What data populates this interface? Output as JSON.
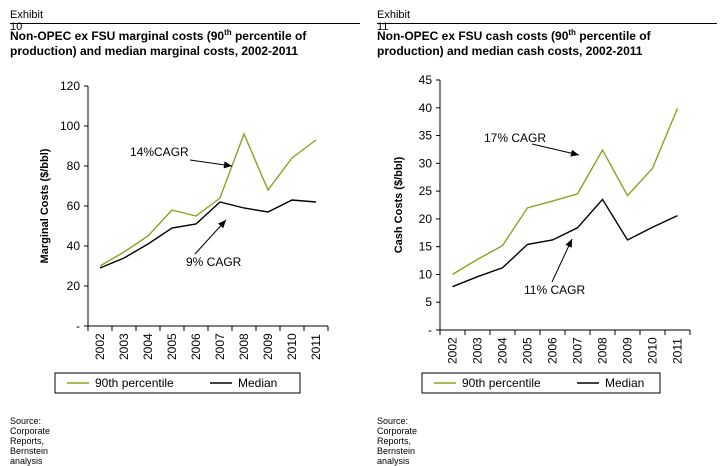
{
  "exhibits": [
    {
      "label": "Exhibit 10",
      "title_line1_a": "Non-OPEC ex FSU marginal costs (90",
      "title_line1_sup": "th",
      "title_line1_b": " percentile of",
      "title_line2": "production) and median marginal costs, 2002-2011",
      "source": "Source: Corporate Reports, Bernstein analysis"
    },
    {
      "label": "Exhibit 11",
      "title_line1_a": "Non-OPEC ex FSU cash costs (90",
      "title_line1_sup": "th",
      "title_line1_b": " percentile of",
      "title_line2": "production) and median cash costs, 2002-2011",
      "source": "Source: Corporate Reports, Bernstein analysis"
    }
  ],
  "chart_data": [
    {
      "type": "line",
      "ylabel": "Marginal Costs ($/bbl)",
      "xlabel": "",
      "categories": [
        "2002",
        "2003",
        "2004",
        "2005",
        "2006",
        "2007",
        "2008",
        "2009",
        "2010",
        "2011"
      ],
      "ylim": [
        0,
        120
      ],
      "yticks": [
        0,
        20,
        40,
        60,
        80,
        100,
        120
      ],
      "ytick_labels": [
        "-",
        "20",
        "40",
        "60",
        "80",
        "100",
        "120"
      ],
      "grid": false,
      "legend_position": "bottom",
      "series": [
        {
          "name": "90th percentile",
          "color": "#8FA022",
          "values": [
            30,
            37,
            45,
            58,
            55,
            64,
            96,
            68,
            84,
            93
          ]
        },
        {
          "name": "Median",
          "color": "#000000",
          "values": [
            29,
            34,
            41,
            49,
            51,
            62,
            59,
            57,
            63,
            62
          ]
        }
      ],
      "annotations": [
        {
          "text": "14%CAGR",
          "x": "2007",
          "y": 79
        },
        {
          "text": "9% CAGR",
          "x": "2006",
          "y": 32
        }
      ]
    },
    {
      "type": "line",
      "ylabel": "Cash Costs ($/bbl)",
      "xlabel": "",
      "categories": [
        "2002",
        "2003",
        "2004",
        "2005",
        "2006",
        "2007",
        "2008",
        "2009",
        "2010",
        "2011"
      ],
      "ylim": [
        0,
        45
      ],
      "yticks": [
        0,
        5,
        10,
        15,
        20,
        25,
        30,
        35,
        40,
        45
      ],
      "ytick_labels": [
        "-",
        "5",
        "10",
        "15",
        "20",
        "25",
        "30",
        "35",
        "40",
        "45"
      ],
      "grid": false,
      "legend_position": "bottom",
      "series": [
        {
          "name": "90th percentile",
          "color": "#8FA022",
          "values": [
            10,
            12.7,
            15.2,
            22,
            23.2,
            24.5,
            32.4,
            24.2,
            29.1,
            39.9
          ]
        },
        {
          "name": "Median",
          "color": "#000000",
          "values": [
            7.8,
            9.6,
            11.2,
            15.4,
            16.2,
            18.4,
            23.5,
            16.2,
            18.5,
            20.6
          ]
        }
      ],
      "annotations": [
        {
          "text": "17% CAGR",
          "x": "2005",
          "y": 33.5
        },
        {
          "text": "11% CAGR",
          "x": "2006",
          "y": 7.3
        }
      ]
    }
  ]
}
